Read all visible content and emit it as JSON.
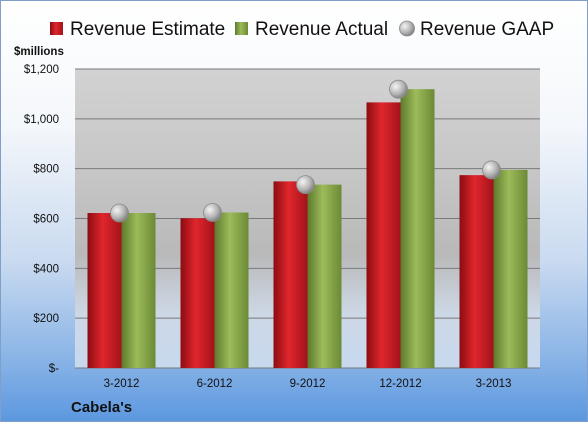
{
  "chart_data": {
    "type": "bar",
    "categories": [
      "3-2012",
      "6-2012",
      "9-2012",
      "12-2012",
      "3-2013"
    ],
    "series": [
      {
        "name": "Revenue Estimate",
        "kind": "bar",
        "color": "#c8161e",
        "values": [
          622,
          601,
          749,
          1066,
          774
        ]
      },
      {
        "name": "Revenue Actual",
        "kind": "bar",
        "color": "#8aa84a",
        "values": [
          622,
          624,
          736,
          1119,
          795
        ]
      },
      {
        "name": "Revenue GAAP",
        "kind": "marker",
        "color": "#b8b8b8",
        "values": [
          622,
          624,
          736,
          1119,
          795
        ]
      }
    ],
    "ylabel": "$millions",
    "ylim": [
      0,
      1200
    ],
    "yticks": [
      0,
      200,
      400,
      600,
      800,
      1000,
      1200
    ],
    "ytick_labels": [
      "$-",
      "$200",
      "$400",
      "$600",
      "$800",
      "$1,000",
      "$1,200"
    ],
    "grid": true,
    "legend_position": "top"
  },
  "footer": {
    "company": "Cabela's"
  }
}
